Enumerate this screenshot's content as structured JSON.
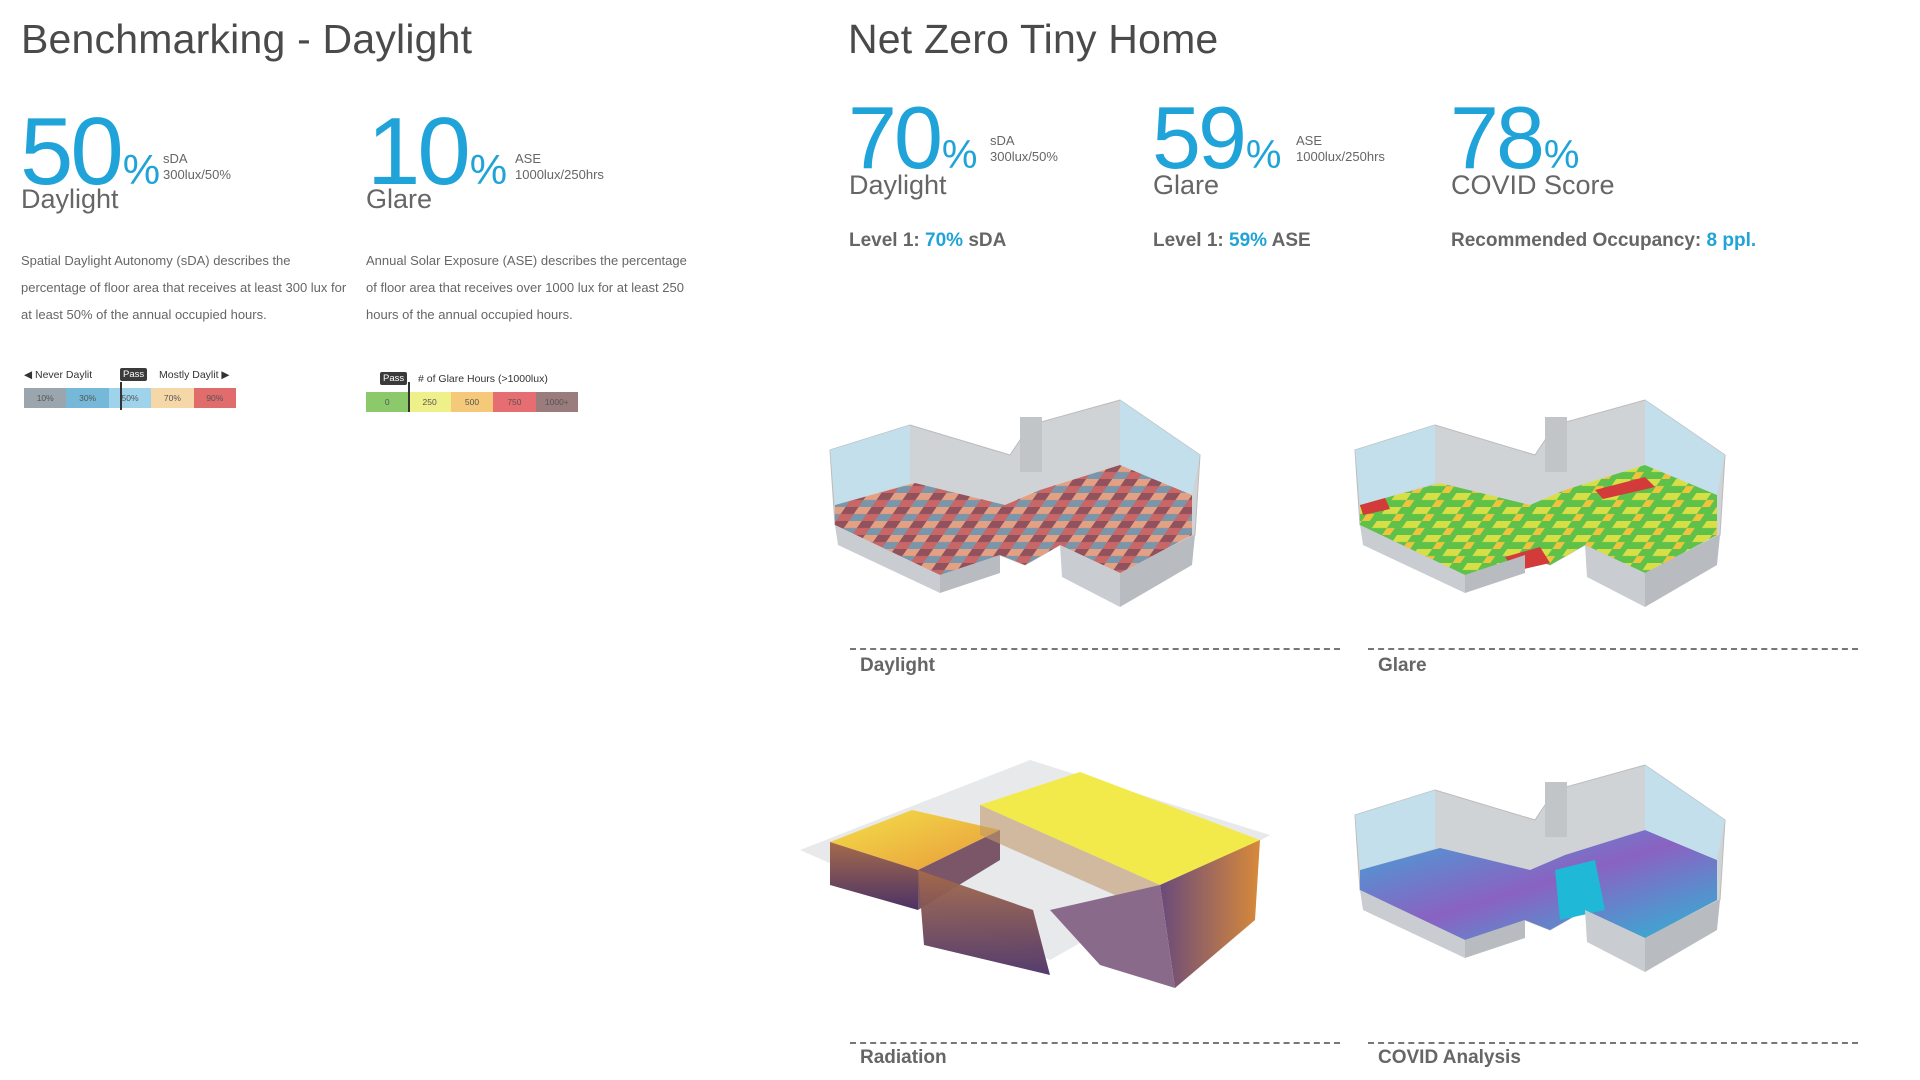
{
  "left": {
    "title": "Benchmarking - Daylight",
    "sda": {
      "value": "50",
      "pct": "%",
      "unit_line1": "sDA",
      "unit_line2": "300lux/50%",
      "name": "Daylight",
      "description": "Spatial Daylight Autonomy (sDA) describes the percentage of floor area that receives at least 300 lux for at least 50% of the annual occupied hours.",
      "legend": {
        "left_label": "◀ Never Daylit",
        "pass_label": "Pass",
        "right_label": "Mostly Daylit ▶",
        "cells": [
          "10%",
          "30%",
          "50%",
          "70%",
          "90%"
        ],
        "colors": [
          "#9aa5ad",
          "#76b8d8",
          "#9fd3ec",
          "#f6d7a8",
          "#e06c6c"
        ]
      }
    },
    "ase": {
      "value": "10",
      "pct": "%",
      "unit_line1": "ASE",
      "unit_line2": "1000lux/250hrs",
      "name": "Glare",
      "description": "Annual Solar Exposure (ASE) describes the percentage of floor area that receives over 1000 lux for at least 250 hours of the annual occupied hours.",
      "legend": {
        "pass_label": "Pass",
        "title": "# of Glare Hours (>1000lux)",
        "cells": [
          "0",
          "250",
          "500",
          "750",
          "1000+"
        ],
        "colors": [
          "#8cc96b",
          "#eef08a",
          "#f4c97a",
          "#e66e72",
          "#9b7c7c"
        ]
      }
    }
  },
  "right": {
    "title": "Net Zero Tiny Home",
    "metrics": [
      {
        "value": "70",
        "pct": "%",
        "unit_line1": "sDA",
        "unit_line2": "300lux/50%",
        "name": "Daylight",
        "level_prefix": "Level 1: ",
        "level_value": "70%",
        "level_suffix": " sDA"
      },
      {
        "value": "59",
        "pct": "%",
        "unit_line1": "ASE",
        "unit_line2": "1000lux/250hrs",
        "name": "Glare",
        "level_prefix": "Level 1: ",
        "level_value": "59%",
        "level_suffix": " ASE"
      },
      {
        "value": "78",
        "pct": "%",
        "unit_line1": "",
        "unit_line2": "",
        "name": "COVID Score",
        "level_prefix": "Recommended Occupancy: ",
        "level_value": "8 ppl.",
        "level_suffix": ""
      }
    ],
    "captions": {
      "daylight": "Daylight",
      "glare": "Glare",
      "radiation": "Radiation",
      "covid": "COVID Analysis"
    }
  },
  "accent_color": "#1fa3d8"
}
